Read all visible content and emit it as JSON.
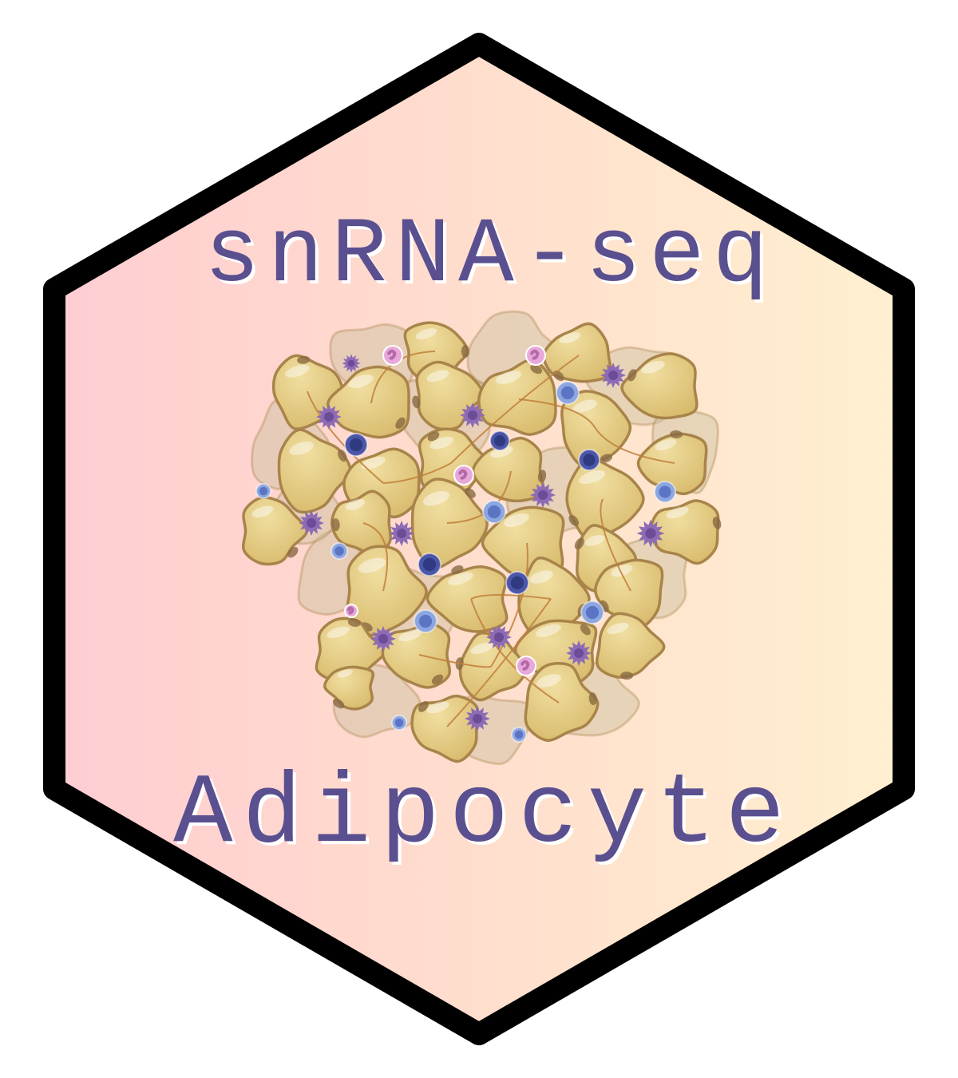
{
  "sticker": {
    "title": "snRNA-seq",
    "subtitle": "Adipocyte",
    "illustration": "adipose-tissue-cell-cluster-illustration"
  },
  "colors": {
    "background": "#ffffff",
    "hex_border": "#000000",
    "gradient_left": "#ffcdd2",
    "gradient_mid": "#ffdccd",
    "gradient_right": "#fff0d0",
    "text_fill": "#5a5090",
    "text_shadow": "#ffffff",
    "adipocyte_fill": "#e1c77f",
    "adipocyte_outline": "#a8844a",
    "adipocyte_back": "#c9bf9e",
    "nucleus": "#8a6a42",
    "fiber": "#c17f3a",
    "macrophage": "#8e6bb5",
    "macrophage_core": "#6d4c97",
    "lymphocyte_dark": "#4b56a8",
    "lymphocyte_dark_core": "#2f3a80",
    "lymphocyte_light": "#8ba6e0",
    "lymphocyte_light_core": "#5c74c4",
    "neutrophil": "#e9a8da",
    "neutrophil_core": "#b46aa8"
  }
}
